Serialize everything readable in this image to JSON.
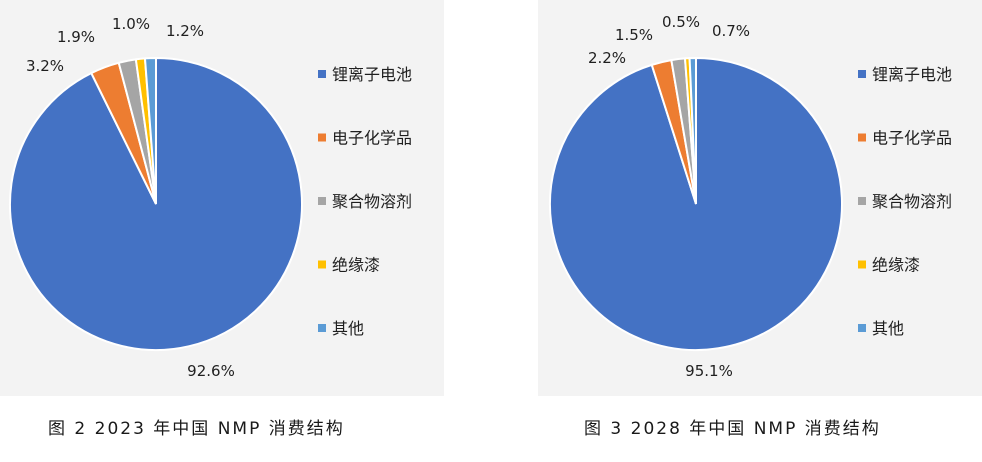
{
  "chart_data": [
    {
      "type": "pie",
      "title": "",
      "categories": [
        "锂离子电池",
        "电子化学品",
        "聚合物溶剂",
        "绝缘漆",
        "其他"
      ],
      "values": [
        92.6,
        3.2,
        1.9,
        1.0,
        1.2
      ],
      "labels": [
        "92.6%",
        "3.2%",
        "1.9%",
        "1.0%",
        "1.2%"
      ],
      "colors": [
        "#4472c4",
        "#ed7d31",
        "#a5a5a5",
        "#ffc000",
        "#5b9bd5"
      ],
      "legend_position": "right"
    },
    {
      "type": "pie",
      "title": "",
      "categories": [
        "锂离子电池",
        "电子化学品",
        "聚合物溶剂",
        "绝缘漆",
        "其他"
      ],
      "values": [
        95.1,
        2.2,
        1.5,
        0.5,
        0.7
      ],
      "labels": [
        "95.1%",
        "2.2%",
        "1.5%",
        "0.5%",
        "0.7%"
      ],
      "colors": [
        "#4472c4",
        "#ed7d31",
        "#a5a5a5",
        "#ffc000",
        "#5b9bd5"
      ],
      "legend_position": "right"
    }
  ],
  "captions": [
    "图 2  2023 年中国 NMP 消费结构",
    "图 3  2028 年中国 NMP 消费结构"
  ]
}
